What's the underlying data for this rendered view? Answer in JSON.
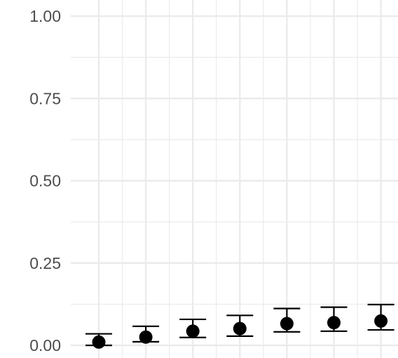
{
  "chart_data": {
    "type": "scatter",
    "title": "",
    "xlabel": "",
    "ylabel": "",
    "ylim": [
      0,
      1
    ],
    "y_ticks": [
      "0.00",
      "0.25",
      "0.50",
      "0.75",
      "1.00"
    ],
    "y_tick_values": [
      0,
      0.25,
      0.5,
      0.75,
      1.0
    ],
    "grid": true,
    "series": [
      {
        "values": [
          0.01,
          0.025,
          0.043,
          0.051,
          0.066,
          0.069,
          0.074
        ],
        "lower": [
          0.0,
          0.011,
          0.024,
          0.028,
          0.041,
          0.043,
          0.047
        ],
        "upper": [
          0.035,
          0.058,
          0.079,
          0.091,
          0.112,
          0.116,
          0.124
        ]
      }
    ],
    "colors": {
      "points": "#000000",
      "grid": "#ebebeb",
      "tick_text": "#4d4d4d"
    }
  }
}
